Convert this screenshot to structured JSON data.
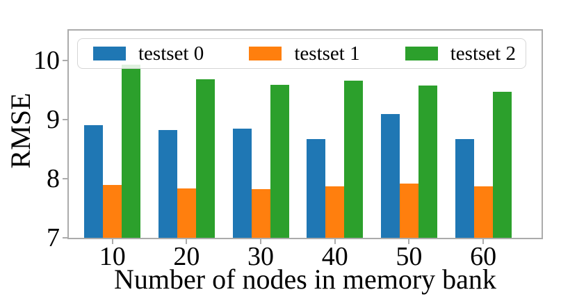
{
  "chart_data": {
    "type": "bar",
    "title": "",
    "xlabel": "Number of nodes in memory bank",
    "ylabel": "RMSE",
    "categories": [
      "10",
      "20",
      "30",
      "40",
      "50",
      "60"
    ],
    "series": [
      {
        "name": "testset 0",
        "color": "#1f77b4",
        "values": [
          8.9,
          8.82,
          8.85,
          8.67,
          9.09,
          8.67
        ]
      },
      {
        "name": "testset 1",
        "color": "#ff7f0e",
        "values": [
          7.89,
          7.84,
          7.82,
          7.87,
          7.92,
          7.87
        ]
      },
      {
        "name": "testset 2",
        "color": "#2ca02c",
        "values": [
          9.93,
          9.68,
          9.58,
          9.66,
          9.57,
          9.47
        ]
      }
    ],
    "ylim": [
      7,
      10.5
    ],
    "yticks": [
      7,
      8,
      9,
      10
    ],
    "grid": false,
    "legend_position": "upper left, horizontal row inside axes",
    "spine_color": "#ababab",
    "text_color": "#000000"
  }
}
